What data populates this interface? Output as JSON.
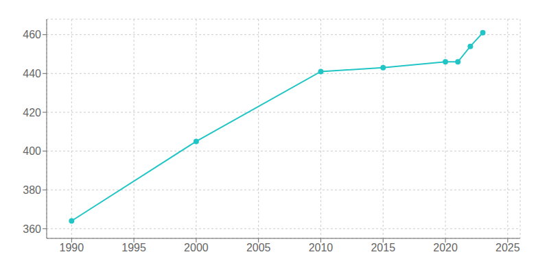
{
  "chart_data": {
    "type": "line",
    "x": [
      1990,
      2000,
      2010,
      2015,
      2020,
      2021,
      2022,
      2023
    ],
    "values": [
      364,
      405,
      441,
      443,
      446,
      446,
      454,
      461
    ],
    "color": "#22c5c5",
    "marker": "circle",
    "xlim": [
      1988,
      2026
    ],
    "ylim": [
      355,
      468
    ],
    "xticks": [
      1990,
      1995,
      2000,
      2005,
      2010,
      2015,
      2020,
      2025
    ],
    "yticks": [
      360,
      380,
      400,
      420,
      440,
      460
    ],
    "grid": true
  }
}
